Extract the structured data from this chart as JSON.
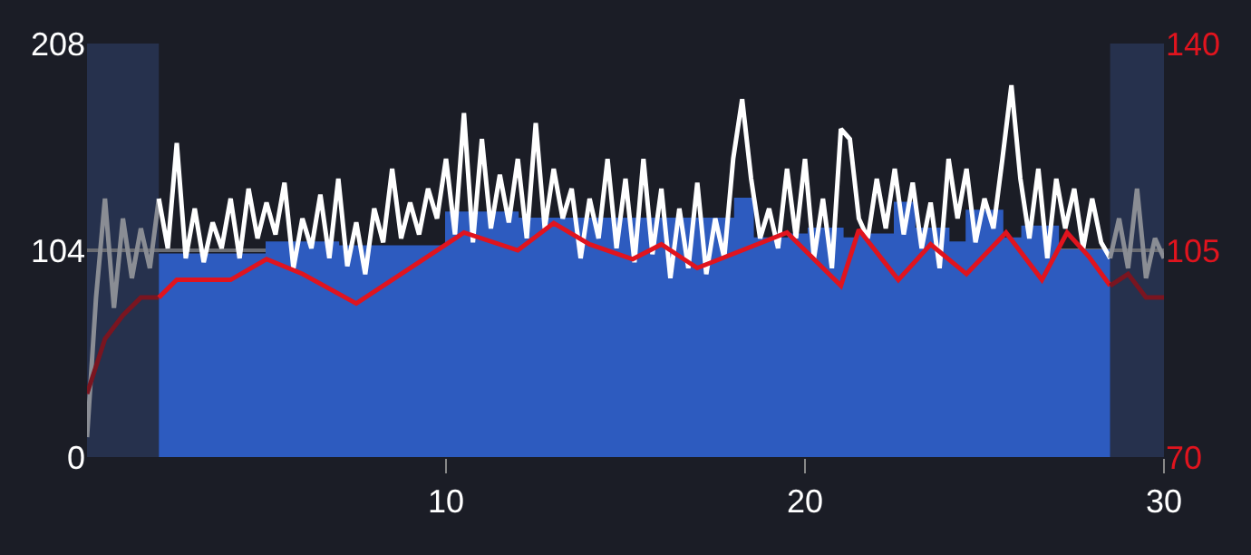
{
  "chart_data": {
    "type": "line",
    "xlim": [
      0,
      30
    ],
    "xticks": [
      10,
      20,
      30
    ],
    "ylim": [
      0,
      208
    ],
    "yticks": [
      0,
      104,
      208
    ],
    "y2lim": [
      70,
      140
    ],
    "y2ticks": [
      70,
      105,
      140
    ],
    "grid": "y",
    "bands": [
      {
        "axis": "x",
        "from": 0,
        "to": 2,
        "color": "#26314d"
      },
      {
        "axis": "x",
        "from": 28.5,
        "to": 30,
        "color": "#26314d"
      }
    ],
    "series": [
      {
        "type": "area",
        "color": "#2d5bbf",
        "x": [
          2,
          5,
          5,
          7,
          7,
          10,
          10,
          12,
          12,
          18.05,
          18.05,
          18.55,
          18.55,
          19.55,
          19.55,
          20.1,
          20.1,
          21.05,
          21.05,
          21.5,
          21.5,
          22.5,
          22.5,
          23.05,
          23.05,
          24,
          24,
          24.5,
          24.5,
          25.5,
          25.5,
          26.05,
          26.05,
          27.05,
          27.05,
          28.5
        ],
        "values": [
          102,
          102,
          108,
          108,
          106,
          106,
          123,
          123,
          120,
          120,
          130,
          130,
          110,
          110,
          112,
          112,
          115,
          115,
          110,
          110,
          112,
          112,
          128,
          128,
          115,
          115,
          108,
          108,
          124,
          124,
          110,
          110,
          116,
          116,
          104,
          104
        ]
      },
      {
        "color": "#8a8d94",
        "x": [
          0,
          0.25,
          0.5,
          0.75,
          1,
          1.25,
          1.5,
          1.75,
          2
        ],
        "values": [
          10,
          80,
          130,
          75,
          120,
          90,
          115,
          95,
          130
        ]
      },
      {
        "color": "#ffffff",
        "x": [
          2,
          2.25,
          2.5,
          2.75,
          3,
          3.25,
          3.5,
          3.75,
          4,
          4.25,
          4.5,
          4.75,
          5,
          5.25,
          5.5,
          5.75,
          6,
          6.25,
          6.5,
          6.75,
          7,
          7.25,
          7.5,
          7.75,
          8,
          8.25,
          8.5,
          8.75,
          9,
          9.25,
          9.5,
          9.75,
          10,
          10.25,
          10.5,
          10.75,
          11,
          11.25,
          11.5,
          11.75,
          12,
          12.25,
          12.5,
          12.75,
          13,
          13.25,
          13.5,
          13.75,
          14,
          14.25,
          14.5,
          14.75,
          15,
          15.25,
          15.5,
          15.75,
          16,
          16.25,
          16.5,
          16.75,
          17,
          17.25,
          17.5,
          17.75,
          18,
          18.25,
          18.5,
          18.75,
          19,
          19.25,
          19.5,
          19.75,
          20,
          20.25,
          20.5,
          20.75,
          21,
          21.25,
          21.5,
          21.75,
          22,
          22.25,
          22.5,
          22.75,
          23,
          23.25,
          23.5,
          23.75,
          24,
          24.25,
          24.5,
          24.75,
          25,
          25.25,
          25.5,
          25.75,
          26,
          26.25,
          26.5,
          26.75,
          27,
          27.25,
          27.5,
          27.75,
          28,
          28.25,
          28.5
        ],
        "values": [
          130,
          105,
          158,
          100,
          125,
          98,
          118,
          105,
          130,
          100,
          135,
          110,
          128,
          112,
          138,
          95,
          120,
          105,
          132,
          100,
          140,
          96,
          118,
          92,
          125,
          108,
          145,
          110,
          128,
          112,
          135,
          120,
          150,
          112,
          173,
          108,
          160,
          115,
          142,
          118,
          150,
          110,
          168,
          115,
          145,
          120,
          135,
          100,
          130,
          110,
          150,
          105,
          140,
          98,
          150,
          102,
          135,
          90,
          125,
          95,
          138,
          92,
          120,
          100,
          150,
          180,
          140,
          110,
          125,
          105,
          145,
          110,
          150,
          100,
          130,
          95,
          165,
          160,
          120,
          110,
          140,
          115,
          145,
          112,
          138,
          105,
          128,
          95,
          150,
          120,
          145,
          108,
          130,
          115,
          150,
          187,
          140,
          110,
          145,
          100,
          140,
          115,
          135,
          105,
          130,
          108,
          100
        ]
      },
      {
        "color": "#8a8d94",
        "x": [
          28.5,
          28.75,
          29,
          29.25,
          29.5,
          29.75,
          30
        ],
        "values": [
          100,
          120,
          95,
          135,
          90,
          110,
          100
        ]
      },
      {
        "axis": "y2",
        "color": "#7a1520",
        "x": [
          0,
          0.5,
          1,
          1.5,
          2
        ],
        "values": [
          80.7,
          90,
          94,
          97,
          97
        ]
      },
      {
        "axis": "y2",
        "color": "#e0141e",
        "x": [
          2,
          2.5,
          4,
          5,
          6,
          7.5,
          9,
          10.5,
          12,
          13,
          14,
          15.2,
          16,
          17,
          19.5,
          21,
          21.5,
          22.6,
          23.5,
          24.5,
          25.6,
          26.6,
          27.3,
          27.9,
          28.5
        ],
        "values": [
          97,
          100,
          100,
          103.5,
          101,
          96,
          102,
          108,
          105,
          109.6,
          106,
          103.5,
          106,
          102,
          108,
          99,
          108.5,
          100,
          106,
          101,
          108,
          100,
          108,
          104,
          99
        ]
      },
      {
        "axis": "y2",
        "color": "#7a1520",
        "x": [
          28.5,
          29,
          29.5,
          30
        ],
        "values": [
          99,
          101,
          97,
          97
        ]
      }
    ]
  }
}
